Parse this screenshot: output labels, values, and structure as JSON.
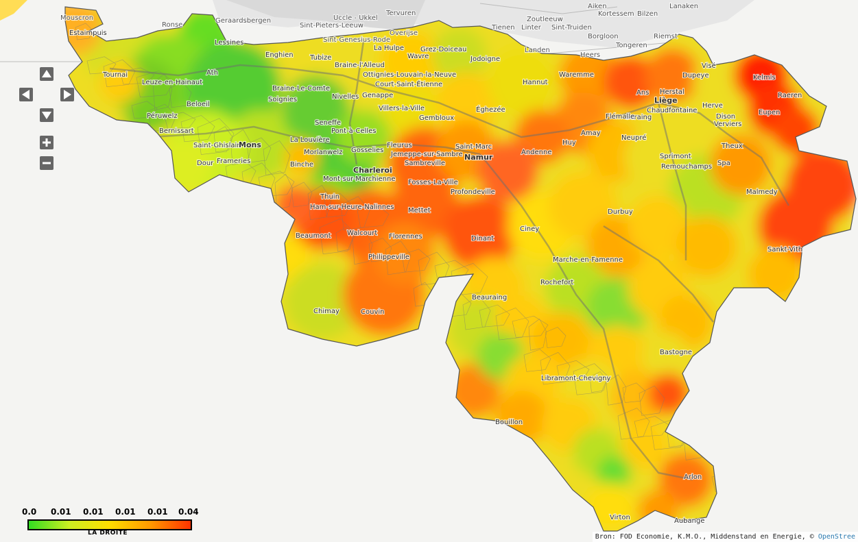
{
  "map": {
    "legend": {
      "ticks": [
        "0.0",
        "0.01",
        "0.01",
        "0.01",
        "0.01",
        "0.04"
      ],
      "label": "LA DROITE",
      "gradient_colors": [
        "#33dd22",
        "#ccee22",
        "#ffdd00",
        "#ff9900",
        "#ff3300"
      ],
      "range": [
        0.0,
        0.04
      ]
    },
    "attribution": {
      "prefix": "Bron: FOD Economie, K.M.O., Middenstand en Energie, ©",
      "link": "OpenStree"
    },
    "controls": {
      "pan_up": "pan-up",
      "pan_down": "pan-down",
      "pan_left": "pan-left",
      "pan_right": "pan-right",
      "zoom_in": "zoom-in",
      "zoom_out": "zoom-out"
    },
    "outside_labels": [
      "Mouscron",
      "Ronse",
      "Geraardsbergen",
      "Uccle - Ukkel",
      "Tervuren",
      "Sint-Pieters-Leeuw",
      "Overijse",
      "Sint-Genesius-Rode",
      "Tienen",
      "Zoutleeuw",
      "Linter",
      "Sint-Truiden",
      "Aiken",
      "Kortessem",
      "Bilzen",
      "Lanaken",
      "Borgloon",
      "Riemst",
      "Landen",
      "Heers",
      "Tongeren"
    ],
    "place_labels": [
      "Estaimpuis",
      "Lessines",
      "Enghien",
      "Tubize",
      "Braine-l'Alleud",
      "La Hulpe",
      "Wavre",
      "Grez-Doiceau",
      "Jodoigne",
      "Tournai",
      "Leuze-en-Hainaut",
      "Ath",
      "Braine-Le-Comte",
      "Soignies",
      "Ottignies-Louvain-la-Neuve",
      "Court-Saint-Étienne",
      "Genappe",
      "Nivelles",
      "Villers-la-Ville",
      "Gembloux",
      "Éghezée",
      "Hannut",
      "Waremme",
      "Ans",
      "Liège",
      "Herstal",
      "Dupeye",
      "Visé",
      "Kelmis",
      "Raeren",
      "Eupen",
      "Herve",
      "Dison",
      "Verviers",
      "Seraing",
      "Chaudfontaine",
      "Flémalle",
      "Amay",
      "Huy",
      "Neupré",
      "Sprimont",
      "Theux",
      "Spa",
      "Remouchamps",
      "Malmedy",
      "Sankt-Vith",
      "Péruwelz",
      "Bernissart",
      "Beloeil",
      "Saint-Ghislain",
      "Mons",
      "Frameries",
      "Dour",
      "Seneffe",
      "Pont-à-Celles",
      "La Louvière",
      "Morlanwelz",
      "Binche",
      "Gosselies",
      "Fleurus",
      "Charleroi",
      "Mont-sur-Marchienne",
      "Sambreville",
      "Jemeppe-sur-Sambre",
      "Saint-Marc",
      "Namur",
      "Andenne",
      "Fosses-La-Ville",
      "Profondeville",
      "Thuin",
      "Ham-sur-Heure-Nalinnes",
      "Mettet",
      "Beaumont",
      "Walcourt",
      "Florennes",
      "Dinant",
      "Ciney",
      "Durbuy",
      "Philippeville",
      "Marche-en-Famenne",
      "Rochefort",
      "Chimay",
      "Couvin",
      "Beauraing",
      "Bastogne",
      "Libramont-Chevigny",
      "Bouillon",
      "Arlon",
      "Virton",
      "Aubange"
    ],
    "big_labels": [
      "Mons",
      "Charleroi",
      "Namur",
      "Liège"
    ]
  }
}
